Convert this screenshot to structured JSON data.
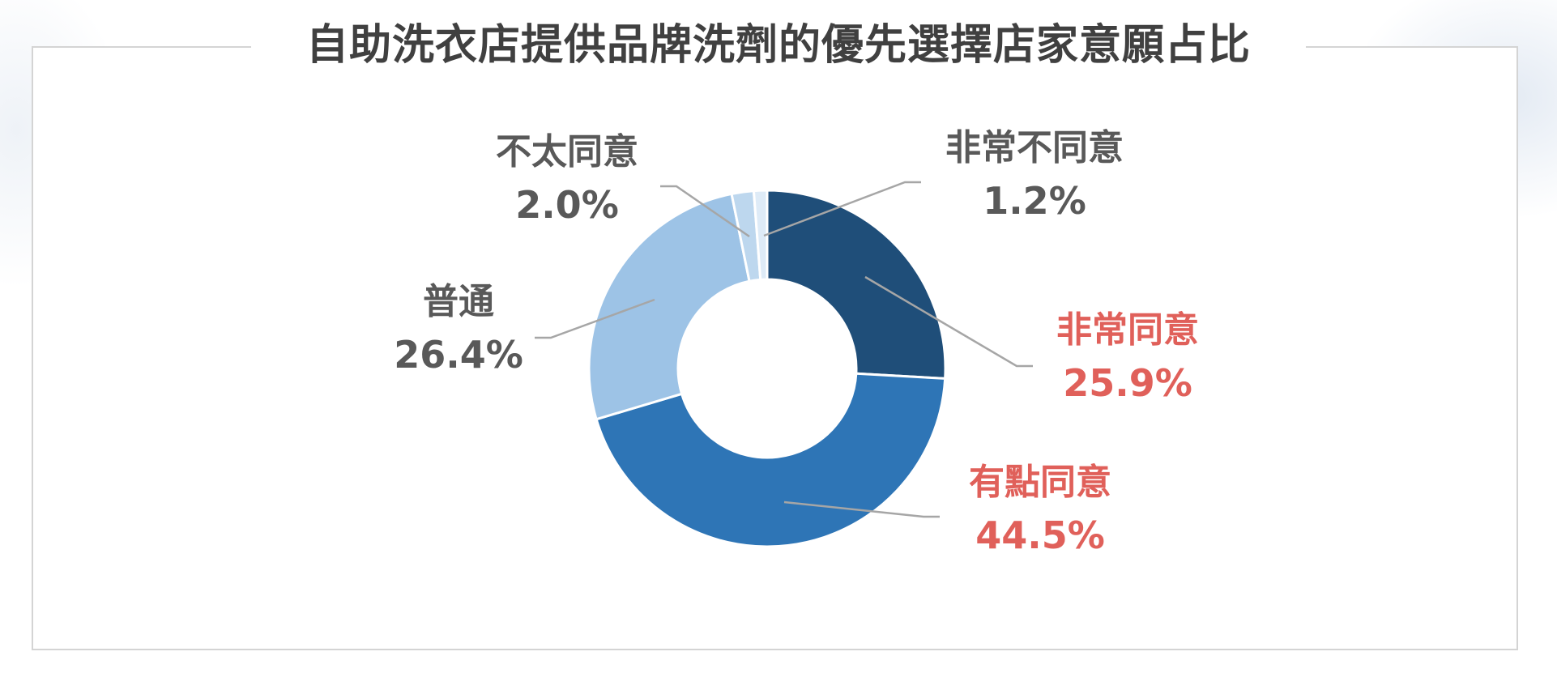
{
  "chart_data": {
    "type": "pie",
    "donut": true,
    "title": "自助洗衣店提供品牌洗劑的優先選擇店家意願占比",
    "slices": [
      {
        "name": "非常同意",
        "value": 25.9,
        "label": "25.9%",
        "color": "#1f4e79",
        "label_color": "#e0605a"
      },
      {
        "name": "有點同意",
        "value": 44.5,
        "label": "44.5%",
        "color": "#2e75b6",
        "label_color": "#e0605a"
      },
      {
        "name": "普通",
        "value": 26.4,
        "label": "26.4%",
        "color": "#9dc3e6",
        "label_color": "#595959"
      },
      {
        "name": "不太同意",
        "value": 2.0,
        "label": "2.0%",
        "color": "#bdd7ee",
        "label_color": "#595959"
      },
      {
        "name": "非常不同意",
        "value": 1.2,
        "label": "1.2%",
        "color": "#deebf7",
        "label_color": "#595959"
      }
    ],
    "legend": "none",
    "grid": false
  }
}
